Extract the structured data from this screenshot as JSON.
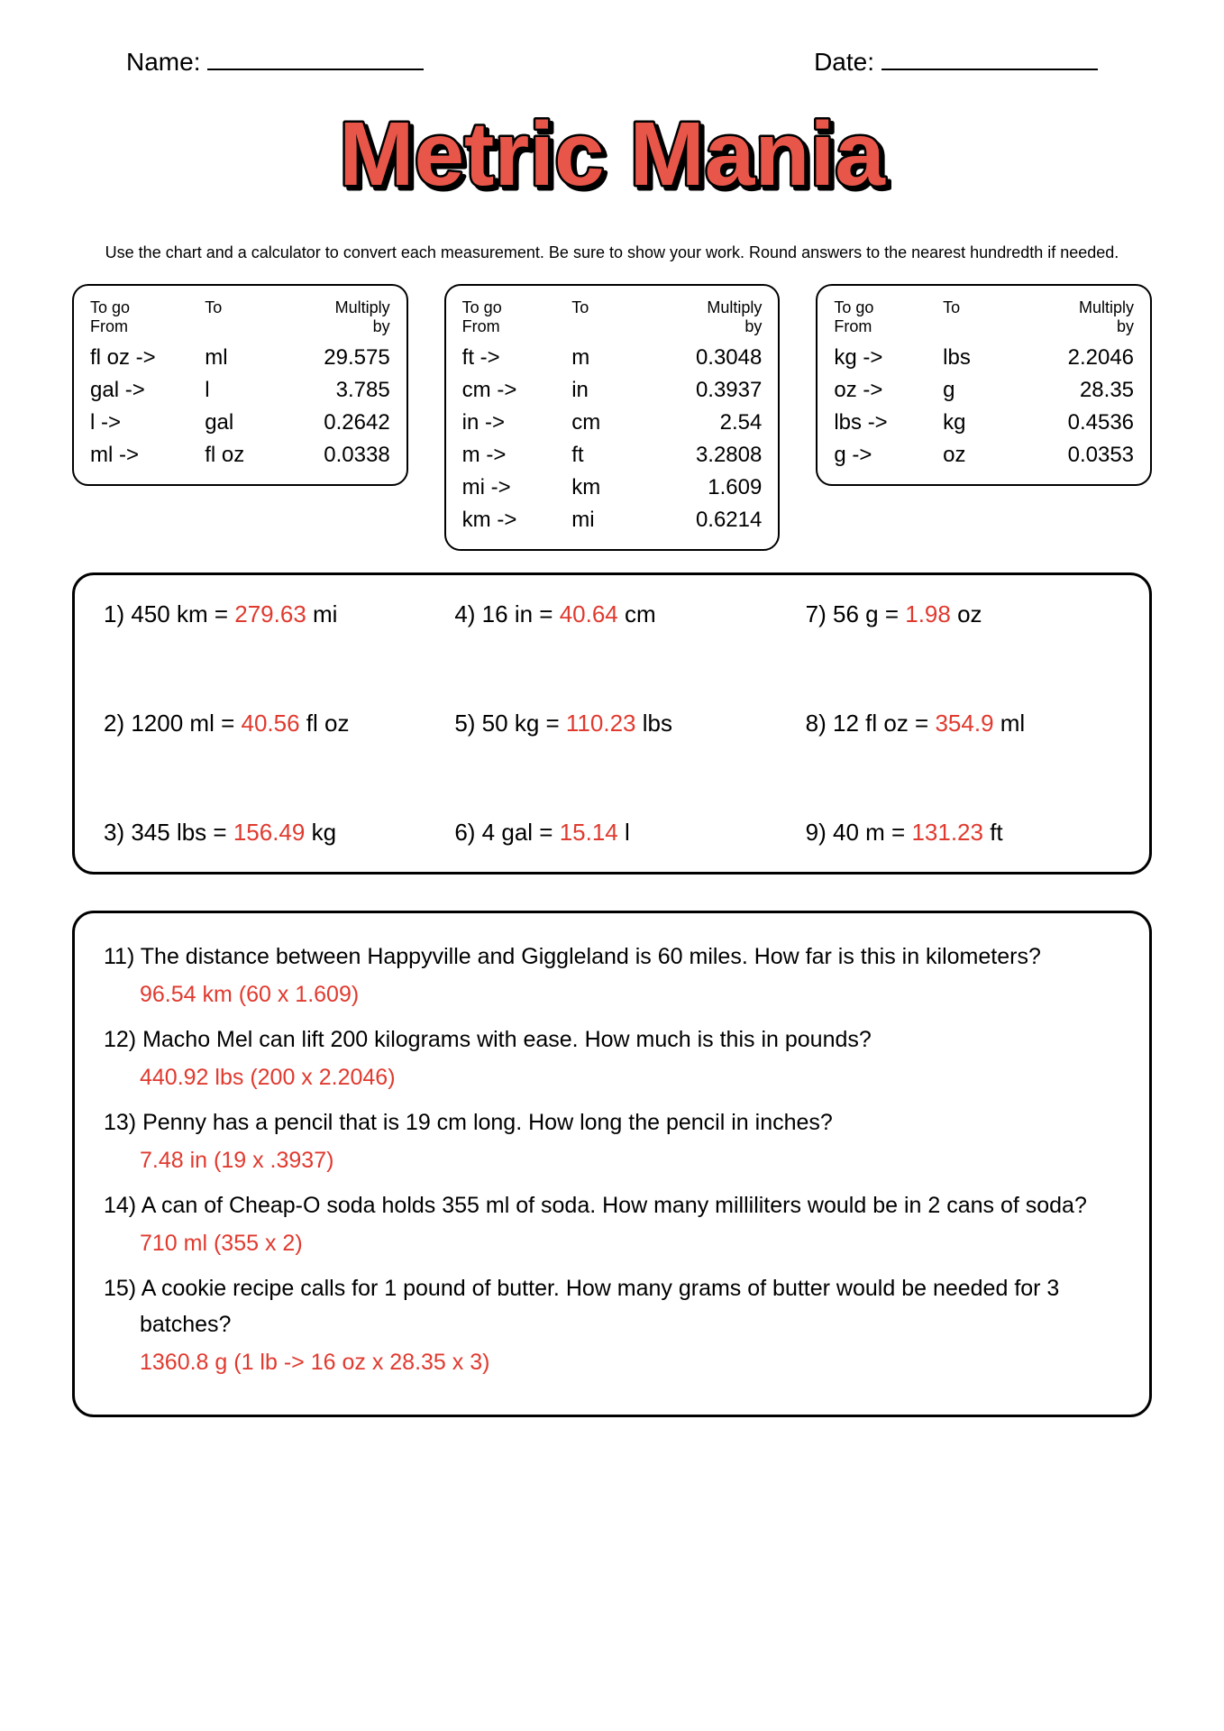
{
  "header": {
    "name_label": "Name:",
    "date_label": "Date:"
  },
  "title": "Metric Mania",
  "title_color": "#e8574a",
  "title_stroke": "#000000",
  "instructions": "Use the chart and a calculator to convert each measurement. Be sure to show your work. Round answers to the nearest hundredth if needed.",
  "conversion_tables": {
    "headers": [
      "To go From",
      "To",
      "Multiply by"
    ],
    "tables": [
      {
        "rows": [
          [
            "fl oz ->",
            "ml",
            "29.575"
          ],
          [
            "gal ->",
            "l",
            "3.785"
          ],
          [
            "l ->",
            "gal",
            "0.2642"
          ],
          [
            "ml ->",
            "fl oz",
            "0.0338"
          ]
        ]
      },
      {
        "rows": [
          [
            "ft ->",
            "m",
            "0.3048"
          ],
          [
            "cm ->",
            "in",
            "0.3937"
          ],
          [
            "in ->",
            "cm",
            "2.54"
          ],
          [
            "m ->",
            "ft",
            "3.2808"
          ],
          [
            "mi ->",
            "km",
            "1.609"
          ],
          [
            "km ->",
            "mi",
            "0.6214"
          ]
        ]
      },
      {
        "rows": [
          [
            "kg ->",
            "lbs",
            "2.2046"
          ],
          [
            "oz ->",
            "g",
            "28.35"
          ],
          [
            "lbs ->",
            "kg",
            "0.4536"
          ],
          [
            "g ->",
            "oz",
            "0.0353"
          ]
        ]
      }
    ]
  },
  "problems": [
    {
      "n": "1)",
      "lhs": "450 km =",
      "ans": "279.63",
      "unit": "mi"
    },
    {
      "n": "2)",
      "lhs": "1200 ml =",
      "ans": "40.56",
      "unit": "fl oz"
    },
    {
      "n": "3)",
      "lhs": "345 lbs =",
      "ans": "156.49",
      "unit": "kg"
    },
    {
      "n": "4)",
      "lhs": "16 in =",
      "ans": "40.64",
      "unit": "cm"
    },
    {
      "n": "5)",
      "lhs": "50 kg =",
      "ans": "110.23",
      "unit": "lbs"
    },
    {
      "n": "6)",
      "lhs": "4 gal =",
      "ans": "15.14",
      "unit": "l"
    },
    {
      "n": "7)",
      "lhs": "56 g =",
      "ans": "1.98",
      "unit": "oz"
    },
    {
      "n": "8)",
      "lhs": "12 fl oz =",
      "ans": "354.9",
      "unit": "ml"
    },
    {
      "n": "9)",
      "lhs": "40 m =",
      "ans": "131.23",
      "unit": "ft"
    }
  ],
  "word_problems": [
    {
      "n": "11)",
      "q": "The distance between Happyville and Giggleland is 60 miles. How far is this in kilometers?",
      "a": "96.54 km (60 x 1.609)"
    },
    {
      "n": "12)",
      "q": "Macho Mel can lift 200 kilograms with ease. How much is this in pounds?",
      "a": "440.92 lbs (200 x 2.2046)"
    },
    {
      "n": "13)",
      "q": "Penny has a pencil that is 19 cm long. How long the pencil in inches?",
      "a": "7.48 in (19 x .3937)"
    },
    {
      "n": "14)",
      "q": "A can of Cheap-O soda holds 355 ml of soda. How many milliliters would be in 2 cans of soda?",
      "a": "710 ml (355 x 2)"
    },
    {
      "n": "15)",
      "q": "A cookie recipe calls for 1 pound of butter. How many grams of butter would be needed for 3 batches?",
      "a": "1360.8 g (1 lb -> 16 oz x 28.35 x 3)"
    }
  ],
  "colors": {
    "answer": "#e03a2f",
    "text": "#000000",
    "background": "#ffffff",
    "border": "#000000"
  }
}
